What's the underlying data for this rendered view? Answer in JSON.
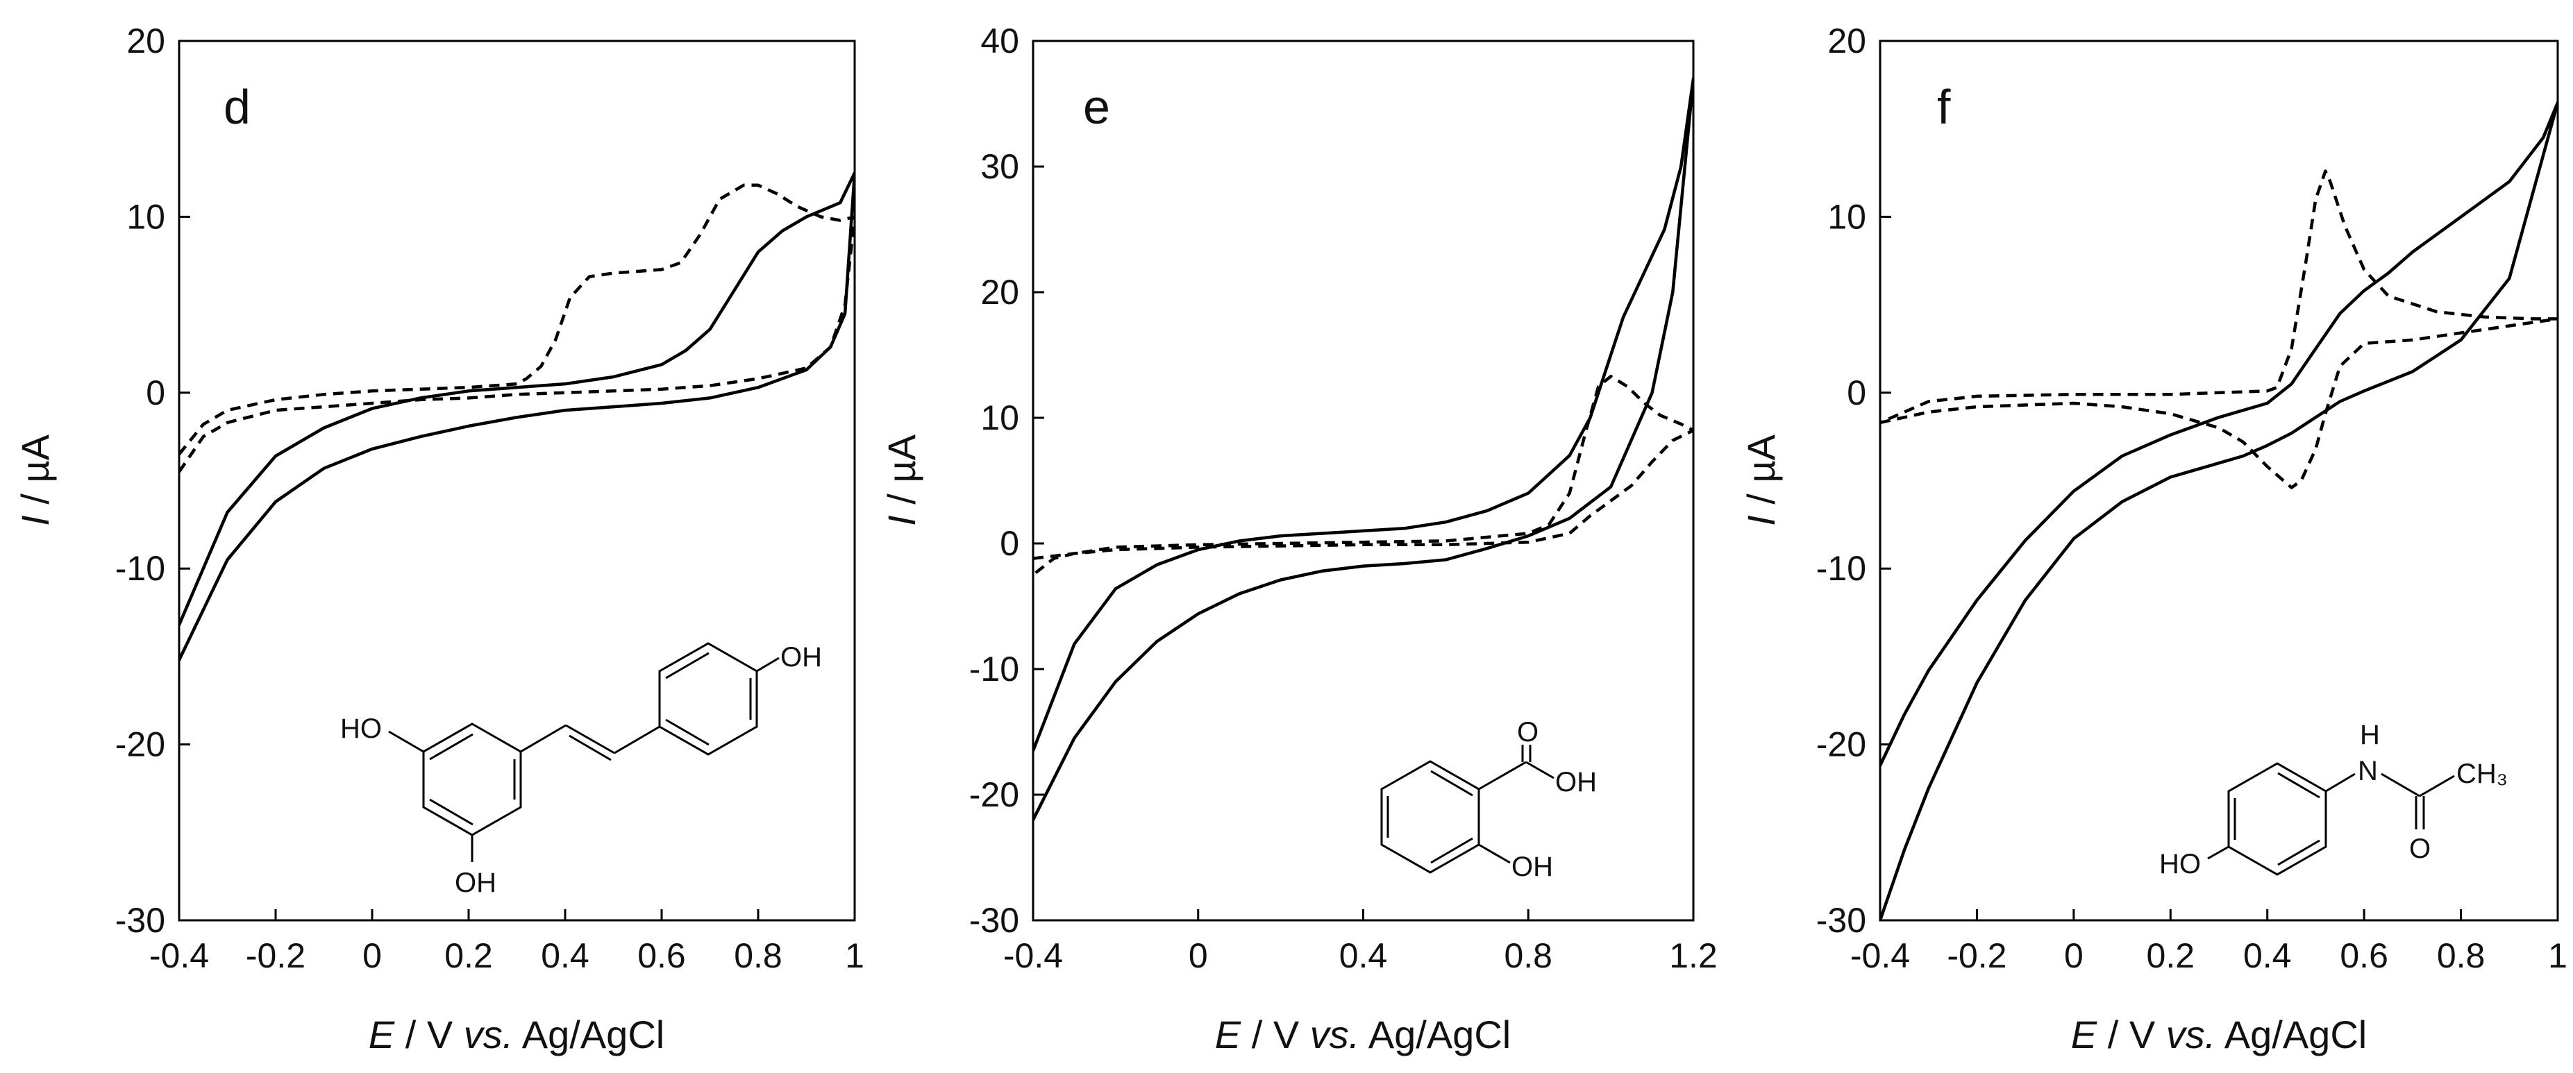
{
  "chart_data": [
    {
      "type": "line",
      "panel_label": "d",
      "xlabel": {
        "italic": "E",
        "plain1": " / V ",
        "italic2": "vs.",
        "plain2": " Ag/AgCl"
      },
      "ylabel": {
        "italic": "I",
        "plain": " / µA"
      },
      "xlim": [
        -0.4,
        1.0
      ],
      "ylim": [
        -30,
        20
      ],
      "xticks": [
        -0.4,
        -0.2,
        0,
        0.2,
        0.4,
        0.6,
        0.8,
        1.0
      ],
      "xtick_labels": [
        "-0.4",
        "-0.2",
        "0",
        "0.2",
        "0.4",
        "0.6",
        "0.8",
        "1"
      ],
      "yticks": [
        -30,
        -20,
        -10,
        0,
        10,
        20
      ],
      "ytick_labels": [
        "-30",
        "-20",
        "-10",
        "0",
        "10",
        "20"
      ],
      "compound_labels": [
        "HO",
        "OH",
        "OH"
      ],
      "series": [
        {
          "name": "solid",
          "style": "solid",
          "points": [
            [
              -0.4,
              -15.2
            ],
            [
              -0.3,
              -9.5
            ],
            [
              -0.2,
              -6.2
            ],
            [
              -0.1,
              -4.3
            ],
            [
              0,
              -3.2
            ],
            [
              0.1,
              -2.5
            ],
            [
              0.2,
              -1.9
            ],
            [
              0.3,
              -1.4
            ],
            [
              0.4,
              -1.0
            ],
            [
              0.5,
              -0.8
            ],
            [
              0.6,
              -0.6
            ],
            [
              0.7,
              -0.3
            ],
            [
              0.8,
              0.3
            ],
            [
              0.9,
              1.3
            ],
            [
              0.95,
              2.6
            ],
            [
              0.98,
              4.5
            ],
            [
              1.0,
              12.5
            ],
            [
              0.97,
              10.8
            ],
            [
              0.9,
              10.0
            ],
            [
              0.85,
              9.2
            ],
            [
              0.8,
              8.0
            ],
            [
              0.75,
              5.8
            ],
            [
              0.7,
              3.6
            ],
            [
              0.65,
              2.4
            ],
            [
              0.6,
              1.6
            ],
            [
              0.5,
              0.9
            ],
            [
              0.4,
              0.5
            ],
            [
              0.3,
              0.3
            ],
            [
              0.2,
              0.1
            ],
            [
              0.1,
              -0.3
            ],
            [
              0,
              -0.9
            ],
            [
              -0.1,
              -2.0
            ],
            [
              -0.2,
              -3.6
            ],
            [
              -0.3,
              -6.8
            ],
            [
              -0.4,
              -13.2
            ]
          ]
        },
        {
          "name": "dashed",
          "style": "dashed",
          "points": [
            [
              -0.4,
              -4.5
            ],
            [
              -0.35,
              -2.5
            ],
            [
              -0.3,
              -1.7
            ],
            [
              -0.2,
              -1.0
            ],
            [
              -0.1,
              -0.8
            ],
            [
              0,
              -0.6
            ],
            [
              0.1,
              -0.4
            ],
            [
              0.2,
              -0.3
            ],
            [
              0.3,
              -0.1
            ],
            [
              0.4,
              0.0
            ],
            [
              0.5,
              0.1
            ],
            [
              0.6,
              0.2
            ],
            [
              0.7,
              0.4
            ],
            [
              0.8,
              0.8
            ],
            [
              0.9,
              1.4
            ],
            [
              0.95,
              2.6
            ],
            [
              0.98,
              5.0
            ],
            [
              1.0,
              10.0
            ],
            [
              0.97,
              9.8
            ],
            [
              0.93,
              10.0
            ],
            [
              0.88,
              10.6
            ],
            [
              0.84,
              11.3
            ],
            [
              0.8,
              11.8
            ],
            [
              0.77,
              11.8
            ],
            [
              0.72,
              11.0
            ],
            [
              0.68,
              9.0
            ],
            [
              0.64,
              7.4
            ],
            [
              0.6,
              7.0
            ],
            [
              0.55,
              6.9
            ],
            [
              0.5,
              6.8
            ],
            [
              0.45,
              6.6
            ],
            [
              0.41,
              5.4
            ],
            [
              0.38,
              3.0
            ],
            [
              0.35,
              1.5
            ],
            [
              0.32,
              0.8
            ],
            [
              0.3,
              0.5
            ],
            [
              0.2,
              0.3
            ],
            [
              0.1,
              0.2
            ],
            [
              0,
              0.1
            ],
            [
              -0.1,
              -0.1
            ],
            [
              -0.2,
              -0.4
            ],
            [
              -0.3,
              -1.0
            ],
            [
              -0.35,
              -1.8
            ],
            [
              -0.4,
              -3.5
            ]
          ]
        }
      ]
    },
    {
      "type": "line",
      "panel_label": "e",
      "xlabel": {
        "italic": "E",
        "plain1": " / V ",
        "italic2": "vs.",
        "plain2": " Ag/AgCl"
      },
      "ylabel": {
        "italic": "I",
        "plain": " / µA"
      },
      "xlim": [
        -0.4,
        1.2
      ],
      "ylim": [
        -30,
        40
      ],
      "xticks": [
        -0.4,
        0,
        0.4,
        0.8,
        1.2
      ],
      "xtick_labels": [
        "-0.4",
        "0",
        "0.4",
        "0.8",
        "1.2"
      ],
      "yticks": [
        -30,
        -20,
        -10,
        0,
        10,
        20,
        30,
        40
      ],
      "ytick_labels": [
        "-30",
        "-20",
        "-10",
        "0",
        "10",
        "20",
        "30",
        "40"
      ],
      "compound_labels": [
        "O",
        "OH",
        "OH"
      ],
      "series": [
        {
          "name": "solid",
          "style": "solid",
          "points": [
            [
              -0.4,
              -22.0
            ],
            [
              -0.3,
              -15.5
            ],
            [
              -0.2,
              -11.0
            ],
            [
              -0.1,
              -7.8
            ],
            [
              0,
              -5.6
            ],
            [
              0.1,
              -4.0
            ],
            [
              0.2,
              -2.9
            ],
            [
              0.3,
              -2.2
            ],
            [
              0.4,
              -1.8
            ],
            [
              0.5,
              -1.6
            ],
            [
              0.6,
              -1.3
            ],
            [
              0.7,
              -0.4
            ],
            [
              0.8,
              0.6
            ],
            [
              0.9,
              2.0
            ],
            [
              1.0,
              4.5
            ],
            [
              1.1,
              12.0
            ],
            [
              1.15,
              20.0
            ],
            [
              1.2,
              37.0
            ],
            [
              1.17,
              30.0
            ],
            [
              1.13,
              25.0
            ],
            [
              1.08,
              21.5
            ],
            [
              1.03,
              18.0
            ],
            [
              1.0,
              15.0
            ],
            [
              0.95,
              10.0
            ],
            [
              0.9,
              7.0
            ],
            [
              0.8,
              4.0
            ],
            [
              0.7,
              2.6
            ],
            [
              0.6,
              1.7
            ],
            [
              0.5,
              1.2
            ],
            [
              0.4,
              1.0
            ],
            [
              0.3,
              0.8
            ],
            [
              0.2,
              0.6
            ],
            [
              0.1,
              0.2
            ],
            [
              0,
              -0.5
            ],
            [
              -0.1,
              -1.7
            ],
            [
              -0.2,
              -3.6
            ],
            [
              -0.3,
              -8.0
            ],
            [
              -0.4,
              -16.5
            ]
          ]
        },
        {
          "name": "dashed",
          "style": "dashed",
          "points": [
            [
              -0.4,
              -1.2
            ],
            [
              -0.3,
              -0.8
            ],
            [
              -0.2,
              -0.5
            ],
            [
              0,
              -0.3
            ],
            [
              0.2,
              -0.2
            ],
            [
              0.4,
              -0.1
            ],
            [
              0.6,
              -0.1
            ],
            [
              0.8,
              0.1
            ],
            [
              0.9,
              0.8
            ],
            [
              0.95,
              2.2
            ],
            [
              1.0,
              3.4
            ],
            [
              1.05,
              4.6
            ],
            [
              1.1,
              6.5
            ],
            [
              1.15,
              8.2
            ],
            [
              1.2,
              9.0
            ],
            [
              1.17,
              9.5
            ],
            [
              1.12,
              10.2
            ],
            [
              1.08,
              11.2
            ],
            [
              1.04,
              12.5
            ],
            [
              1.0,
              13.3
            ],
            [
              0.97,
              12.5
            ],
            [
              0.94,
              9.0
            ],
            [
              0.9,
              4.0
            ],
            [
              0.85,
              1.5
            ],
            [
              0.8,
              0.8
            ],
            [
              0.6,
              0.2
            ],
            [
              0.4,
              0.1
            ],
            [
              0.2,
              0.0
            ],
            [
              0,
              -0.1
            ],
            [
              -0.2,
              -0.3
            ],
            [
              -0.3,
              -0.8
            ],
            [
              -0.35,
              -1.2
            ],
            [
              -0.4,
              -2.5
            ]
          ]
        }
      ]
    },
    {
      "type": "line",
      "panel_label": "f",
      "xlabel": {
        "italic": "E",
        "plain1": " / V ",
        "italic2": "vs.",
        "plain2": " Ag/AgCl"
      },
      "ylabel": {
        "italic": "I",
        "plain": " / µA"
      },
      "xlim": [
        -0.4,
        1.0
      ],
      "ylim": [
        -30,
        20
      ],
      "xticks": [
        -0.4,
        -0.2,
        0,
        0.2,
        0.4,
        0.6,
        0.8,
        1.0
      ],
      "xtick_labels": [
        "-0.4",
        "-0.2",
        "0",
        "0.2",
        "0.4",
        "0.6",
        "0.8",
        "1"
      ],
      "yticks": [
        -30,
        -20,
        -10,
        0,
        10,
        20
      ],
      "ytick_labels": [
        "-30",
        "-20",
        "-10",
        "0",
        "10",
        "20"
      ],
      "compound_labels": [
        "H",
        "N",
        "CH₃",
        "O",
        "HO"
      ],
      "series": [
        {
          "name": "solid",
          "style": "solid",
          "points": [
            [
              -0.4,
              -30.0
            ],
            [
              -0.35,
              -26.0
            ],
            [
              -0.3,
              -22.5
            ],
            [
              -0.2,
              -16.5
            ],
            [
              -0.1,
              -11.8
            ],
            [
              0,
              -8.3
            ],
            [
              0.1,
              -6.2
            ],
            [
              0.2,
              -4.8
            ],
            [
              0.3,
              -4.0
            ],
            [
              0.35,
              -3.6
            ],
            [
              0.4,
              -3.0
            ],
            [
              0.45,
              -2.3
            ],
            [
              0.5,
              -1.4
            ],
            [
              0.55,
              -0.5
            ],
            [
              0.6,
              0.1
            ],
            [
              0.7,
              1.2
            ],
            [
              0.8,
              3.0
            ],
            [
              0.9,
              6.5
            ],
            [
              1.0,
              16.5
            ],
            [
              0.97,
              14.5
            ],
            [
              0.9,
              12.0
            ],
            [
              0.8,
              10.0
            ],
            [
              0.7,
              8.0
            ],
            [
              0.65,
              6.8
            ],
            [
              0.6,
              5.8
            ],
            [
              0.55,
              4.5
            ],
            [
              0.5,
              2.5
            ],
            [
              0.45,
              0.5
            ],
            [
              0.4,
              -0.6
            ],
            [
              0.3,
              -1.4
            ],
            [
              0.2,
              -2.4
            ],
            [
              0.1,
              -3.6
            ],
            [
              0,
              -5.6
            ],
            [
              -0.1,
              -8.4
            ],
            [
              -0.2,
              -11.8
            ],
            [
              -0.3,
              -15.8
            ],
            [
              -0.35,
              -18.3
            ],
            [
              -0.4,
              -21.2
            ]
          ]
        },
        {
          "name": "dashed",
          "style": "dashed",
          "points": [
            [
              -0.4,
              -1.7
            ],
            [
              -0.35,
              -1.4
            ],
            [
              -0.3,
              -1.1
            ],
            [
              -0.2,
              -0.8
            ],
            [
              0,
              -0.6
            ],
            [
              0.1,
              -0.8
            ],
            [
              0.2,
              -1.2
            ],
            [
              0.3,
              -2.0
            ],
            [
              0.35,
              -2.8
            ],
            [
              0.4,
              -4.2
            ],
            [
              0.45,
              -5.4
            ],
            [
              0.47,
              -5.0
            ],
            [
              0.5,
              -3.2
            ],
            [
              0.52,
              -1.2
            ],
            [
              0.55,
              1.5
            ],
            [
              0.6,
              2.8
            ],
            [
              0.7,
              3.0
            ],
            [
              0.8,
              3.4
            ],
            [
              0.9,
              3.8
            ],
            [
              1.0,
              4.2
            ],
            [
              0.95,
              4.2
            ],
            [
              0.85,
              4.3
            ],
            [
              0.75,
              4.6
            ],
            [
              0.65,
              5.5
            ],
            [
              0.6,
              7.0
            ],
            [
              0.56,
              9.5
            ],
            [
              0.53,
              12.0
            ],
            [
              0.52,
              12.6
            ],
            [
              0.5,
              11.0
            ],
            [
              0.48,
              7.5
            ],
            [
              0.45,
              2.5
            ],
            [
              0.42,
              0.3
            ],
            [
              0.4,
              0.1
            ],
            [
              0.3,
              0.0
            ],
            [
              0.2,
              -0.1
            ],
            [
              0,
              -0.1
            ],
            [
              -0.2,
              -0.2
            ],
            [
              -0.3,
              -0.5
            ],
            [
              -0.4,
              -1.7
            ]
          ]
        }
      ]
    }
  ]
}
